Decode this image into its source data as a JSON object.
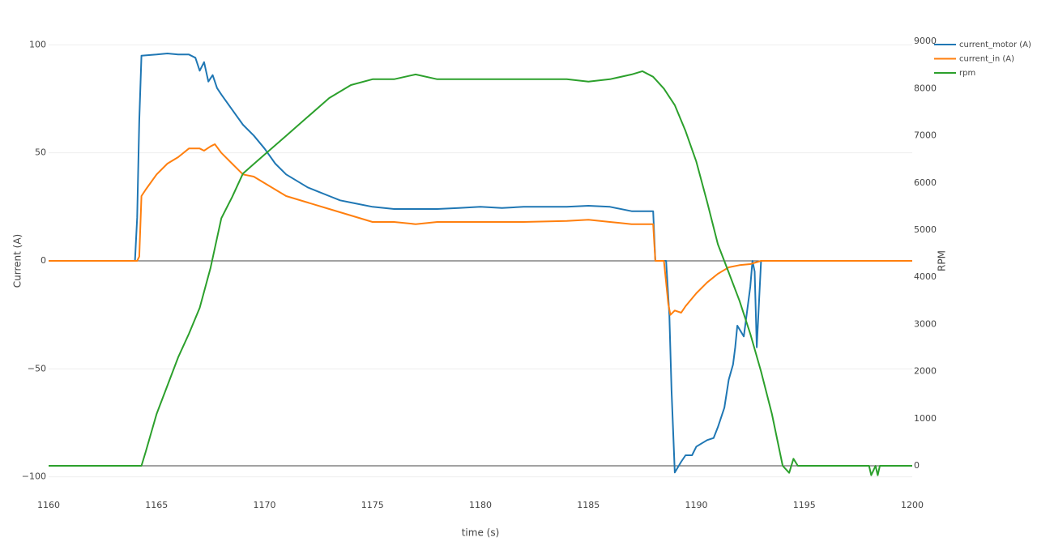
{
  "chart_data": {
    "type": "line",
    "xlabel": "time (s)",
    "ylabel": "Current (A)",
    "y2label": "RPM",
    "xlim": [
      1160,
      1200
    ],
    "xticks": [
      1160,
      1165,
      1170,
      1175,
      1180,
      1185,
      1190,
      1195,
      1200
    ],
    "ylim": [
      -105,
      105
    ],
    "yticks": [
      {
        "value": -100,
        "label": "−100"
      },
      {
        "value": -50,
        "label": "−50"
      },
      0,
      50,
      100
    ],
    "y2lim": [
      -464,
      9158
    ],
    "y2ticks": [
      0,
      1000,
      2000,
      3000,
      4000,
      5000,
      6000,
      7000,
      8000,
      9000
    ],
    "grid": true,
    "zeroline": true,
    "legend": "top-right",
    "series": [
      {
        "name": "current_motor (A)",
        "color": "#1f77b4",
        "x": [
          1160,
          1164.0,
          1164.1,
          1164.2,
          1164.3,
          1165,
          1165.5,
          1166,
          1166.5,
          1166.8,
          1167.0,
          1167.2,
          1167.4,
          1167.6,
          1167.8,
          1168,
          1168.5,
          1169,
          1169.5,
          1170,
          1170.5,
          1171,
          1171.5,
          1172,
          1172.5,
          1173,
          1173.5,
          1174,
          1175,
          1176,
          1177,
          1178,
          1179,
          1180,
          1181,
          1182,
          1183,
          1184,
          1185,
          1186,
          1187,
          1188,
          1188.1,
          1188.6,
          1188.75,
          1188.85,
          1189.0,
          1189.3,
          1189.5,
          1189.8,
          1190,
          1190.5,
          1190.8,
          1191,
          1191.3,
          1191.5,
          1191.7,
          1191.8,
          1191.9,
          1192.2,
          1192.5,
          1192.6,
          1192.7,
          1192.8,
          1193.0,
          1200
        ],
        "values": [
          0,
          0,
          20,
          65,
          95,
          95.5,
          96,
          95.5,
          95.5,
          94,
          88,
          92,
          83,
          86,
          80,
          77,
          70,
          63,
          58,
          52,
          45,
          40,
          37,
          34,
          32,
          30,
          28,
          27,
          25,
          24,
          24,
          24,
          24.5,
          25,
          24.5,
          25,
          25,
          25,
          25.5,
          25,
          23,
          23,
          0,
          0,
          -25,
          -60,
          -98,
          -93,
          -90,
          -90,
          -86,
          -83,
          -82,
          -77,
          -68,
          -55,
          -48,
          -40,
          -30,
          -35,
          -12,
          0,
          -5,
          -40,
          0,
          0
        ]
      },
      {
        "name": "current_in (A)",
        "color": "#ff7f0e",
        "x": [
          1160,
          1164.1,
          1164.2,
          1164.3,
          1164.5,
          1165,
          1165.5,
          1166,
          1166.5,
          1167,
          1167.2,
          1167.5,
          1167.7,
          1168,
          1168.5,
          1169,
          1169.5,
          1170,
          1170.5,
          1171,
          1172,
          1173,
          1174,
          1175,
          1176,
          1177,
          1178,
          1180,
          1182,
          1184,
          1185,
          1186,
          1187,
          1188,
          1188.1,
          1188.5,
          1188.7,
          1188.8,
          1189,
          1189.3,
          1189.5,
          1190,
          1190.5,
          1191,
          1191.5,
          1192,
          1192.5,
          1193,
          1200
        ],
        "values": [
          0,
          0,
          2,
          30,
          33,
          40,
          45,
          48,
          52,
          52,
          51,
          53,
          54,
          50,
          45,
          40,
          39,
          36,
          33,
          30,
          27,
          24,
          21,
          18,
          18,
          17,
          18,
          18,
          18,
          18.5,
          19,
          18,
          17,
          17,
          0,
          0,
          -20,
          -25,
          -23,
          -24,
          -21,
          -15,
          -10,
          -6,
          -3,
          -2,
          -1.5,
          0,
          0
        ]
      },
      {
        "name": "rpm",
        "color": "#2ca02c",
        "axis": "y2",
        "x": [
          1160,
          1164.3,
          1164.5,
          1165,
          1165.5,
          1166,
          1166.5,
          1167,
          1167.5,
          1168,
          1168.5,
          1169,
          1169.5,
          1170,
          1171,
          1172,
          1173,
          1174,
          1175,
          1176,
          1177,
          1178,
          1180,
          1182,
          1184,
          1185,
          1186,
          1187,
          1187.5,
          1188,
          1188.5,
          1189,
          1189.5,
          1190,
          1190.5,
          1191,
          1191.5,
          1192,
          1192.5,
          1193,
          1193.5,
          1194,
          1194.3,
          1194.5,
          1194.7,
          1198,
          1198.1,
          1198.3,
          1198.4,
          1198.5,
          1200
        ],
        "values": [
          0,
          0,
          300,
          1100,
          1700,
          2300,
          2800,
          3350,
          4200,
          5250,
          5700,
          6200,
          6400,
          6600,
          7000,
          7400,
          7800,
          8075,
          8200,
          8200,
          8300,
          8200,
          8200,
          8200,
          8200,
          8150,
          8200,
          8300,
          8370,
          8250,
          8000,
          7650,
          7100,
          6450,
          5600,
          4700,
          4100,
          3500,
          2800,
          2000,
          1100,
          0,
          -150,
          150,
          0,
          0,
          -200,
          0,
          -200,
          0,
          0
        ]
      }
    ]
  }
}
